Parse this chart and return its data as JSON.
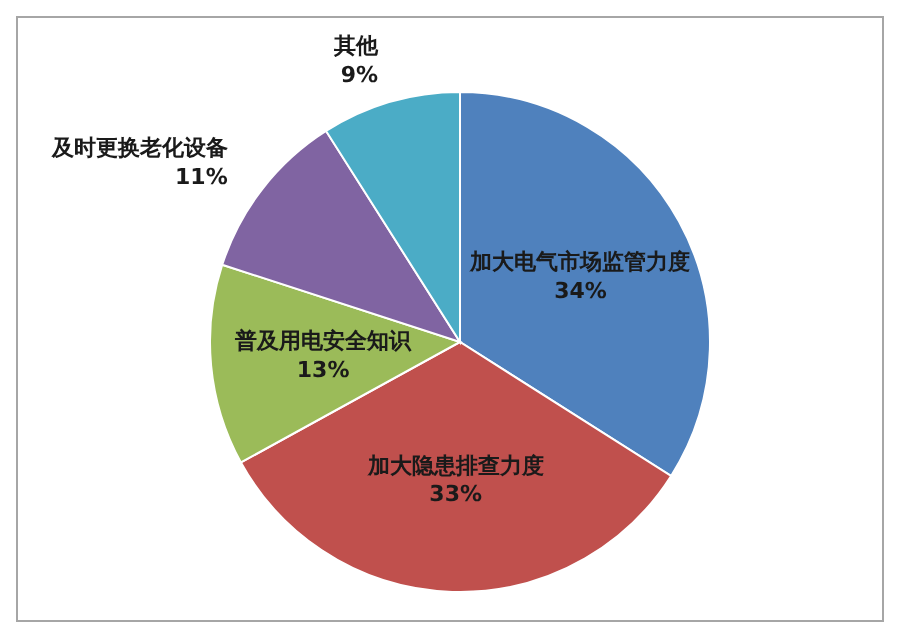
{
  "chart_data": {
    "type": "pie",
    "categories": [
      "加大电气市场监管力度",
      "加大隐患排查力度",
      "普及用电安全知识",
      "及时更换老化设备",
      "其他"
    ],
    "values": [
      34,
      33,
      13,
      11,
      9
    ],
    "value_labels": [
      "34%",
      "33%",
      "13%",
      "11%",
      "9%"
    ],
    "colors": [
      "#4f81bd",
      "#c0504d",
      "#9bbb59",
      "#8064a2",
      "#4bacc6"
    ]
  }
}
